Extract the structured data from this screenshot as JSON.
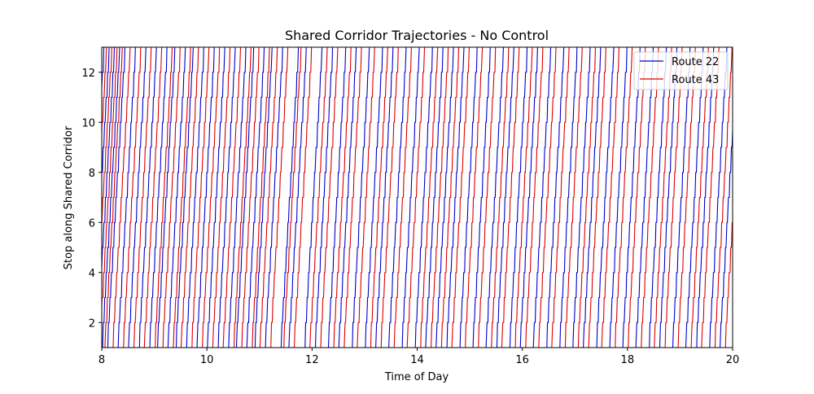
{
  "chart_data": {
    "type": "line",
    "title": "Shared Corridor Trajectories - No Control",
    "xlabel": "Time of Day",
    "ylabel": "Stop along Shared Corridor",
    "xlim": [
      8,
      20
    ],
    "ylim": [
      1,
      13
    ],
    "x_ticks": [
      "8",
      "10",
      "12",
      "14",
      "16",
      "18",
      "20"
    ],
    "y_ticks": [
      "2",
      "4",
      "6",
      "8",
      "10",
      "12"
    ],
    "grid": false,
    "legend_position": "top-right",
    "stop_count": 13,
    "series": [
      {
        "name": "Route 22",
        "color": "#0000cc",
        "departures": [
          7.5,
          7.6,
          7.7,
          7.8,
          7.9,
          8.0,
          8.1,
          8.3,
          8.5,
          8.7,
          8.9,
          9.05,
          9.25,
          9.4,
          9.6,
          9.8,
          10.0,
          10.2,
          10.4,
          10.55,
          10.75,
          10.9,
          11.1,
          11.4,
          11.55,
          11.85,
          12.05,
          12.3,
          12.5,
          12.75,
          13.0,
          13.2,
          13.45,
          13.7,
          13.95,
          14.15,
          14.35,
          14.55,
          14.8,
          15.05,
          15.3,
          15.5,
          15.75,
          15.95,
          16.2,
          16.45,
          16.7,
          16.95,
          17.15,
          17.4,
          17.65,
          17.9,
          18.15,
          18.4,
          18.6,
          18.85,
          19.1,
          19.3,
          19.55,
          19.75,
          20.0
        ],
        "travel_time_hours": 0.34
      },
      {
        "name": "Route 43",
        "color": "#dd0000",
        "departures": [
          7.55,
          7.65,
          7.75,
          7.85,
          7.95,
          8.05,
          8.2,
          8.4,
          8.6,
          8.8,
          9.0,
          9.15,
          9.35,
          9.5,
          9.7,
          9.9,
          10.1,
          10.3,
          10.5,
          10.65,
          10.85,
          11.0,
          11.2,
          11.45,
          11.65,
          11.95,
          12.15,
          12.4,
          12.6,
          12.85,
          13.1,
          13.3,
          13.55,
          13.8,
          14.05,
          14.25,
          14.45,
          14.65,
          14.9,
          15.15,
          15.4,
          15.6,
          15.85,
          16.05,
          16.3,
          16.55,
          16.8,
          17.05,
          17.25,
          17.5,
          17.75,
          18.0,
          18.25,
          18.5,
          18.7,
          18.95,
          19.2,
          19.4,
          19.65,
          19.85
        ],
        "travel_time_hours": 0.34
      }
    ]
  }
}
